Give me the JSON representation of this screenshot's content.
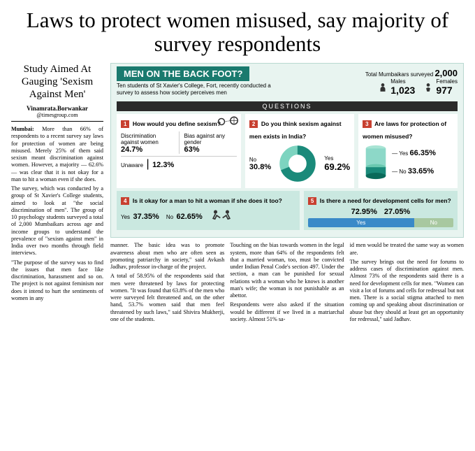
{
  "headline": "Laws to protect women misused, say majority of survey respondents",
  "kicker": "Study Aimed At Gauging 'Sexism Against Men'",
  "byline": {
    "name": "Vinamrata.Borwankar",
    "handle": "@timesgroup.com"
  },
  "leftBody": {
    "dateline": "Mumbai:",
    "p1": "More than 66% of respondents to a recent survey say laws for protection of women are being misused. Merely 25% of them said sexism meant discrimination against women. However, a majority — 62.6% — was clear that it is not okay for a man to hit a woman even if she does.",
    "p2": "The survey, which was conducted by a group of St Xavier's College students, aimed to look at \"the social discrimination of men\". The group of 10 psychology students surveyed a total of 2,000 Mumbaikars across age and income groups to understand the prevalence of \"sexism against men\" in India over two months through field interviews.",
    "p3": "\"The purpose of the survey was to find the issues that men face like discrimination, harassment and so on. The project is not against feminism nor does it intend to hurt the sentiments of women in any"
  },
  "infobox": {
    "title": "MEN ON THE BACK FOOT?",
    "totalLabel": "Total Mumbaikars surveyed",
    "totalNum": "2,000",
    "subhead": "Ten students of St Xavier's College, Fort, recently conducted a survey to assess how society perceives men",
    "males": {
      "label": "Males",
      "num": "1,023"
    },
    "females": {
      "label": "Females",
      "num": "977"
    },
    "questionsLabel": "QUESTIONS",
    "q1": {
      "num": "1",
      "text": "How would you define sexism?",
      "opt1": {
        "label": "Discrimination against women",
        "pct": "24.7%"
      },
      "opt2": {
        "label": "Bias against any gender",
        "pct": "63%"
      },
      "opt3": {
        "label": "Unaware",
        "pct": "12.3%"
      }
    },
    "q2": {
      "num": "2",
      "text": "Do you think sexism against men exists in India?",
      "yes": {
        "label": "Yes",
        "pct": "69.2%"
      },
      "no": {
        "label": "No",
        "pct": "30.8%"
      },
      "donut": {
        "yesColor": "#1a8a7a",
        "noColor": "#7dd4c0",
        "yesDeg": 249
      }
    },
    "q3": {
      "num": "3",
      "text": "Are laws for protection of women misused?",
      "yes": {
        "label": "Yes",
        "pct": "66.35%"
      },
      "no": {
        "label": "No",
        "pct": "33.65%"
      },
      "cyl": {
        "topColor": "#8dd8c8",
        "botColor": "#1a8a7a"
      }
    },
    "q4": {
      "num": "4",
      "text": "Is it okay for a man to hit a woman if she does it too?",
      "yes": {
        "label": "Yes",
        "pct": "37.35%"
      },
      "no": {
        "label": "No",
        "pct": "62.65%"
      }
    },
    "q5": {
      "num": "5",
      "text": "Is there a need for development cells for men?",
      "yes": {
        "label": "Yes",
        "pct": "72.95%"
      },
      "no": {
        "label": "No",
        "pct": "27.05%"
      },
      "bar": {
        "yesColor": "#3a8ac8",
        "noColor": "#a8c8a0",
        "yesWidth": 73
      }
    },
    "colors": {
      "bg": "#e8f4f0",
      "headerBg": "#1a7a6e",
      "qnumBg": "#c84030",
      "tealCard": "#cae8e0"
    }
  },
  "bodyCols": {
    "c1": "manner. The basic idea was to promote awareness about men who are often seen as promoting patriarchy in society,\" said Avkash Jadhav, professor in-charge of the project.\n\nA total of 58.95% of the respondents said that men were threatened by laws for protecting women. \"It was found that 63.8% of the men who were surveyed felt threatened and, on the other hand, 53.7% women said that men feel threatened by such laws,\" said Shivira Mukherji, one of the students.",
    "c2": "Touching on the bias towards women in the legal system, more than 64% of the respondents felt that a married woman, too, must be convicted under Indian Penal Code's section 497. Under the section, a man can be punished for sexual relations with a woman who he knows is another man's wife; the woman is not punishable as an abettor.\n\nRespondents were also asked if the situation would be different if we lived in a matriarchal society. Almost 51% sa-",
    "c3": "id men would be treated the same way as women are.\n\nThe survey brings out the need for forums to address cases of discrimination against men. Almost 73% of the respondents said there is a need for development cells for men. \"Women can visit a lot of forums and cells for redressal but not men. There is a social stigma attached to men coming up and speaking about discrimination or abuse but they should at least get an opportunity for redressal,\" said Jadhav."
  }
}
